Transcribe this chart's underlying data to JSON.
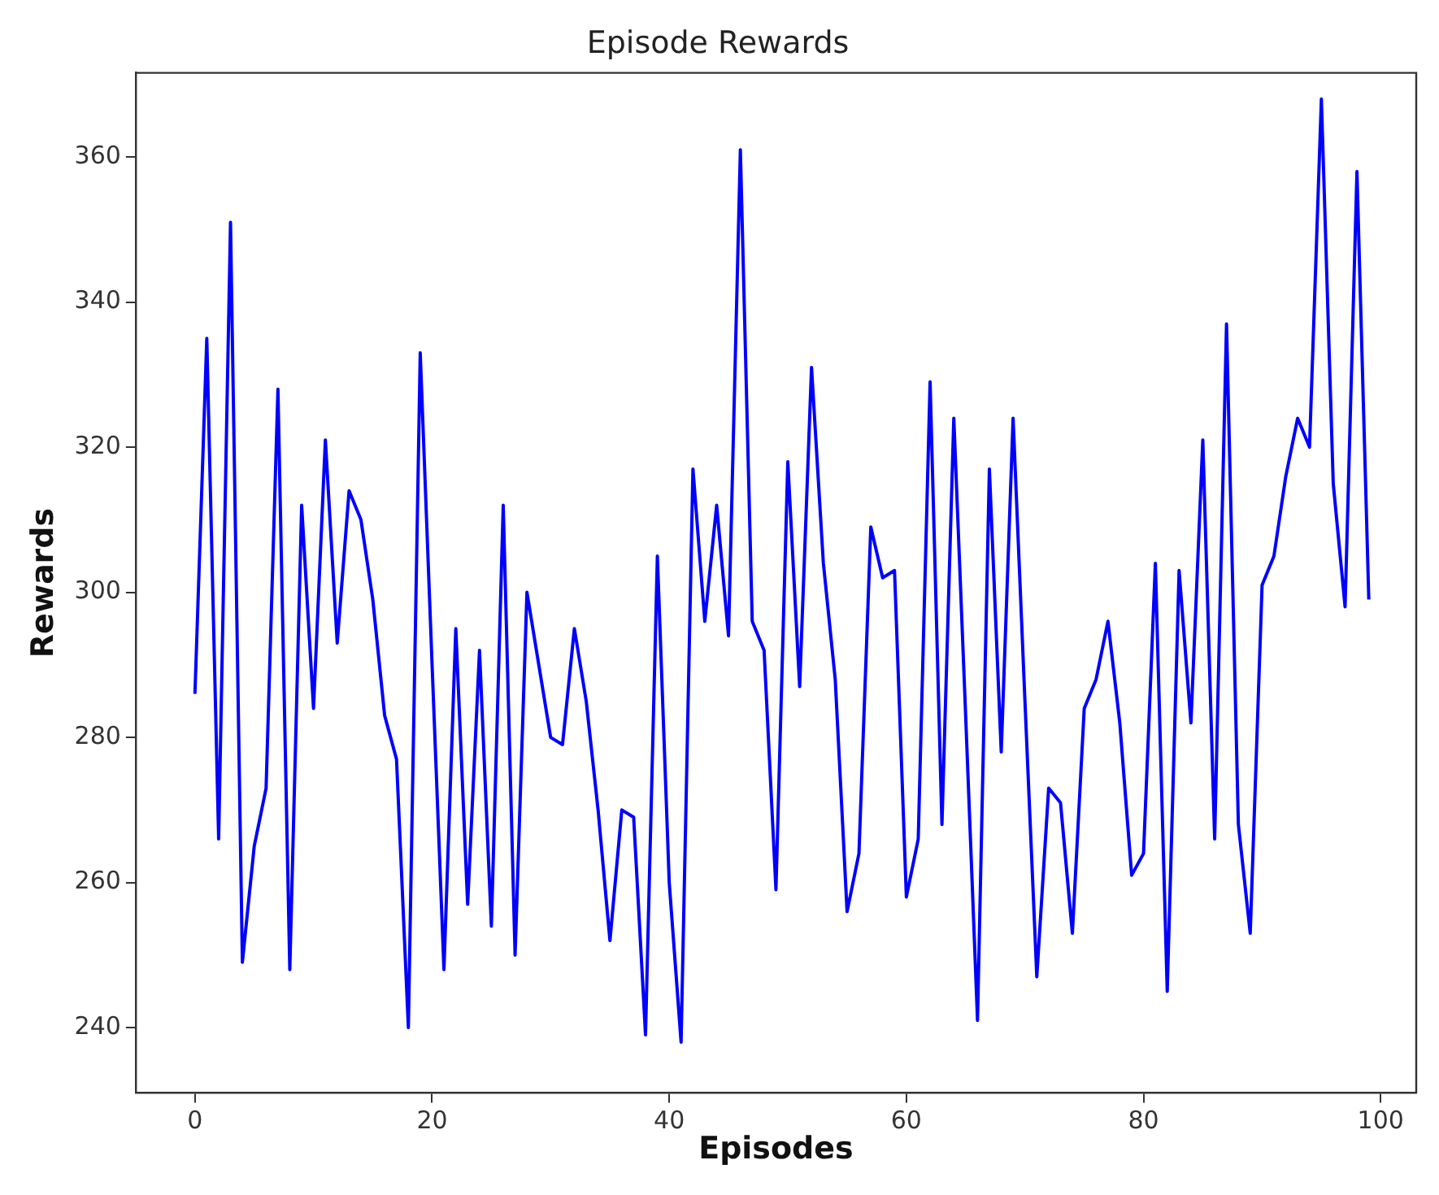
{
  "chart_data": {
    "type": "line",
    "title": "Episode Rewards",
    "xlabel": "Episodes",
    "ylabel": "Rewards",
    "x": [
      0,
      1,
      2,
      3,
      4,
      5,
      6,
      7,
      8,
      9,
      10,
      11,
      12,
      13,
      14,
      15,
      16,
      17,
      18,
      19,
      20,
      21,
      22,
      23,
      24,
      25,
      26,
      27,
      28,
      29,
      30,
      31,
      32,
      33,
      34,
      35,
      36,
      37,
      38,
      39,
      40,
      41,
      42,
      43,
      44,
      45,
      46,
      47,
      48,
      49,
      50,
      51,
      52,
      53,
      54,
      55,
      56,
      57,
      58,
      59,
      60,
      61,
      62,
      63,
      64,
      65,
      66,
      67,
      68,
      69,
      70,
      71,
      72,
      73,
      74,
      75,
      76,
      77,
      78,
      79,
      80,
      81,
      82,
      83,
      84,
      85,
      86,
      87,
      88,
      89,
      90,
      91,
      92,
      93,
      94,
      95,
      96,
      97,
      98,
      99
    ],
    "series": [
      {
        "color": "#0000ff",
        "values": [
          286,
          335,
          266,
          351,
          249,
          265,
          273,
          328,
          248,
          312,
          284,
          321,
          293,
          314,
          310,
          299,
          283,
          277,
          240,
          333,
          290,
          248,
          295,
          257,
          292,
          254,
          312,
          250,
          300,
          290,
          280,
          279,
          295,
          285,
          270,
          252,
          270,
          269,
          239,
          305,
          260,
          238,
          317,
          296,
          312,
          294,
          361,
          296,
          292,
          259,
          318,
          287,
          331,
          304,
          288,
          256,
          264,
          309,
          302,
          303,
          258,
          266,
          329,
          268,
          324,
          283,
          241,
          317,
          278,
          324,
          285,
          247,
          273,
          271,
          253,
          284,
          288,
          296,
          282,
          261,
          264,
          304,
          245,
          303,
          282,
          321,
          266,
          337,
          268,
          253,
          301,
          305,
          316,
          324,
          320,
          368,
          315,
          298,
          358,
          299
        ]
      }
    ],
    "xlim": [
      -5,
      103
    ],
    "xticks": [
      0,
      20,
      40,
      60,
      80,
      100
    ],
    "ylim": [
      231,
      371.6
    ],
    "yticks": [
      240,
      260,
      280,
      300,
      320,
      340,
      360
    ],
    "grid": false,
    "legend": false,
    "marker": "none",
    "line_style": "solid"
  }
}
